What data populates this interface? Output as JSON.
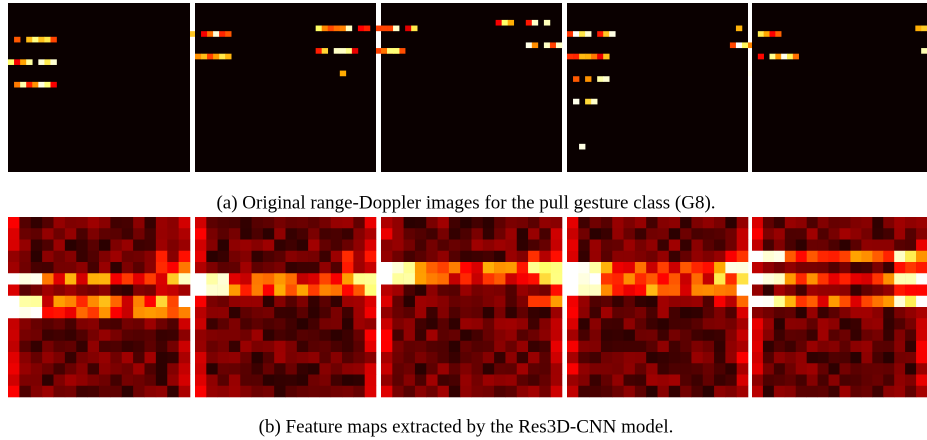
{
  "figure": {
    "captions": [
      "(a) Original range-Doppler images for the pull gesture class (G8).",
      "(b) Feature maps extracted by the Res3D-CNN model."
    ]
  }
}
